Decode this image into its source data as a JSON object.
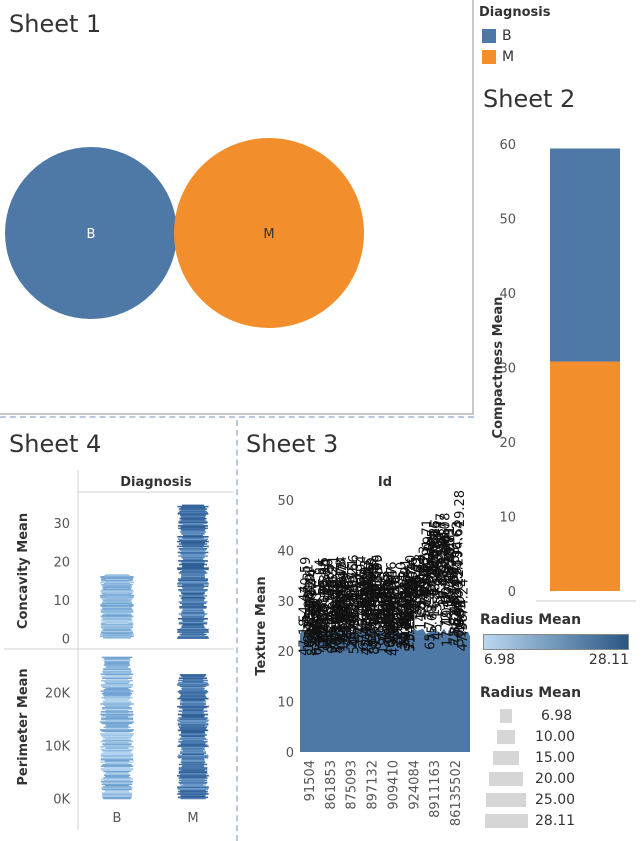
{
  "colors": {
    "B": "#4e79a7",
    "M": "#f28e2b",
    "ramp_light": "#b9d7f0",
    "ramp_dark": "#2a5783"
  },
  "sheets": {
    "sheet1": {
      "title": "Sheet 1"
    },
    "sheet2": {
      "title": "Sheet 2"
    },
    "sheet3": {
      "title": "Sheet 3"
    },
    "sheet4": {
      "title": "Sheet 4"
    }
  },
  "legend_diagnosis": {
    "title": "Diagnosis",
    "items": [
      {
        "label": "B",
        "color": "#4e79a7"
      },
      {
        "label": "M",
        "color": "#f28e2b"
      }
    ]
  },
  "legend_radius_color": {
    "title": "Radius Mean",
    "min_label": "6.98",
    "max_label": "28.11"
  },
  "legend_radius_size": {
    "title": "Radius Mean",
    "items": [
      "6.98",
      "10.00",
      "15.00",
      "20.00",
      "25.00",
      "28.11"
    ]
  },
  "chart_data": [
    {
      "id": "sheet1",
      "type": "bubble",
      "categories": [
        "B",
        "M"
      ],
      "labels": [
        "B",
        "M"
      ]
    },
    {
      "id": "sheet2",
      "type": "bar",
      "stacked": true,
      "ylabel": "Compactness Mean",
      "ylim": [
        0,
        60
      ],
      "yticks": [
        "0",
        "10",
        "20",
        "30",
        "40",
        "50",
        "60"
      ],
      "series": [
        {
          "name": "M",
          "values": [
            30.8
          ]
        },
        {
          "name": "B",
          "values": [
            28.6
          ]
        }
      ]
    },
    {
      "id": "sheet3",
      "type": "area",
      "header": "Id",
      "ylabel": "Texture Mean",
      "ylim": [
        0,
        50
      ],
      "yticks": [
        "0",
        "10",
        "20",
        "30",
        "40",
        "50"
      ],
      "xticks": [
        "91504",
        "861853",
        "875093",
        "897132",
        "909410",
        "924084",
        "8911163",
        "86135502"
      ],
      "area_level": 23,
      "label_band": [
        19,
        32
      ],
      "annotation": "29.28",
      "annotation_value": 52
    },
    {
      "id": "sheet4",
      "type": "strip",
      "header": "Diagnosis",
      "categories": [
        "B",
        "M"
      ],
      "panels": [
        {
          "ylabel": "Concavity Mean",
          "yticks": [
            "0",
            "10",
            "20",
            "30"
          ],
          "ylim": [
            -2,
            37
          ],
          "ranges": [
            [
              0,
              16.4
            ],
            [
              0,
              34.5
            ]
          ]
        },
        {
          "ylabel": "Perimeter Mean",
          "yticks": [
            "0K",
            "10K",
            "20K"
          ],
          "ylim": [
            -1000,
            28000
          ],
          "ranges": [
            [
              0,
              26800
            ],
            [
              0,
              23500
            ]
          ]
        }
      ]
    }
  ]
}
